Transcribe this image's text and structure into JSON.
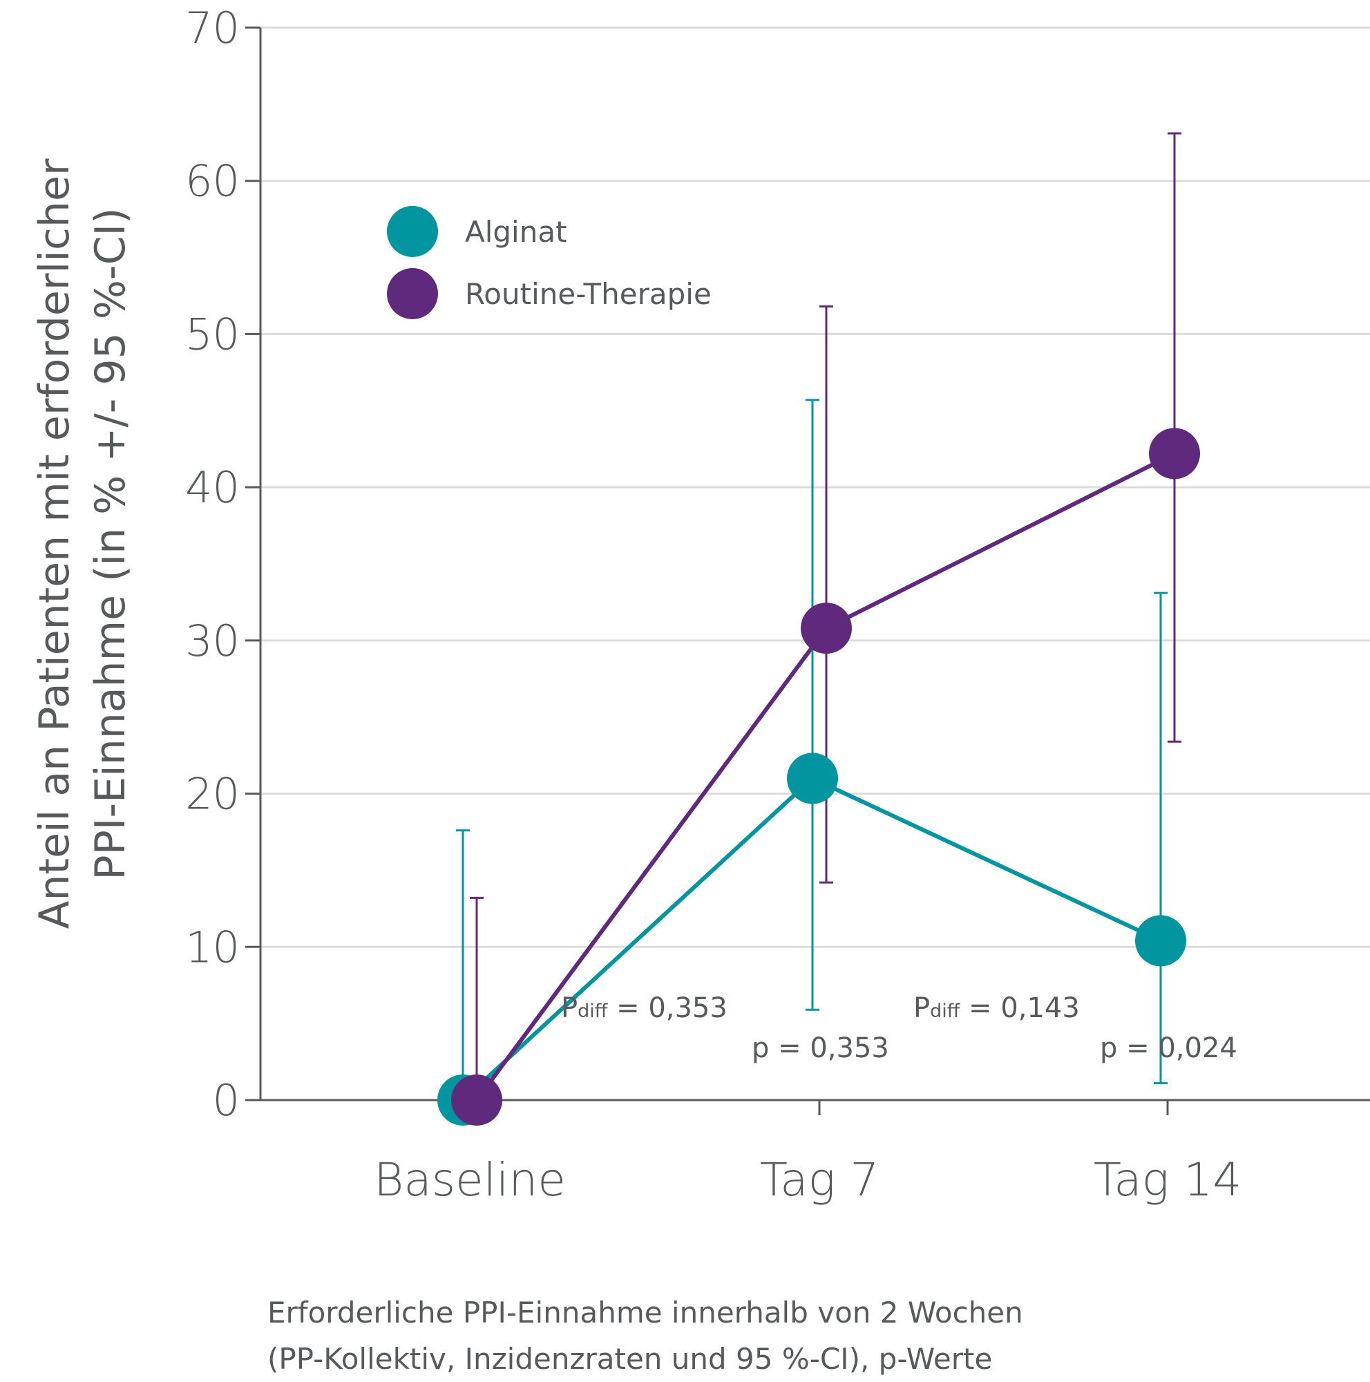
{
  "chart_data": {
    "type": "line",
    "ylabel_line1": "Anteil an Patienten mit erforderlicher",
    "ylabel_line2": "PPI-Einnahme (in % +/- 95 %-CI)",
    "ylim": [
      0,
      70
    ],
    "yticks": [
      "0",
      "10",
      "20",
      "30",
      "40",
      "50",
      "60",
      "70"
    ],
    "grid": true,
    "legend_position": "top-left",
    "categories": [
      "Baseline",
      "Tag 7",
      "Tag 14"
    ],
    "series": [
      {
        "name": "Alginat",
        "color": "#00959f",
        "values": [
          0,
          21,
          10.4
        ],
        "ci_lower": [
          0,
          5.9,
          1.1
        ],
        "ci_upper": [
          17.6,
          45.7,
          33.1
        ]
      },
      {
        "name": "Routine-Therapie",
        "color": "#5f2a7d",
        "values": [
          0,
          30.8,
          42.2
        ],
        "ci_lower": [
          0,
          14.2,
          23.4
        ],
        "ci_upper": [
          13.2,
          51.8,
          63.1
        ]
      }
    ],
    "annotations": [
      {
        "main": "P",
        "sub": "diff",
        "rest": " = 0,353"
      },
      {
        "text": "p = 0,353"
      },
      {
        "main": "P",
        "sub": "diff",
        "rest": " = 0,143"
      },
      {
        "text": "p = 0,024"
      }
    ],
    "caption_line1": "Erforderliche PPI-Einnahme innerhalb von 2 Wochen",
    "caption_line2": "(PP-Kollektiv, Inzidenzraten und 95 %-CI), p-Werte"
  }
}
